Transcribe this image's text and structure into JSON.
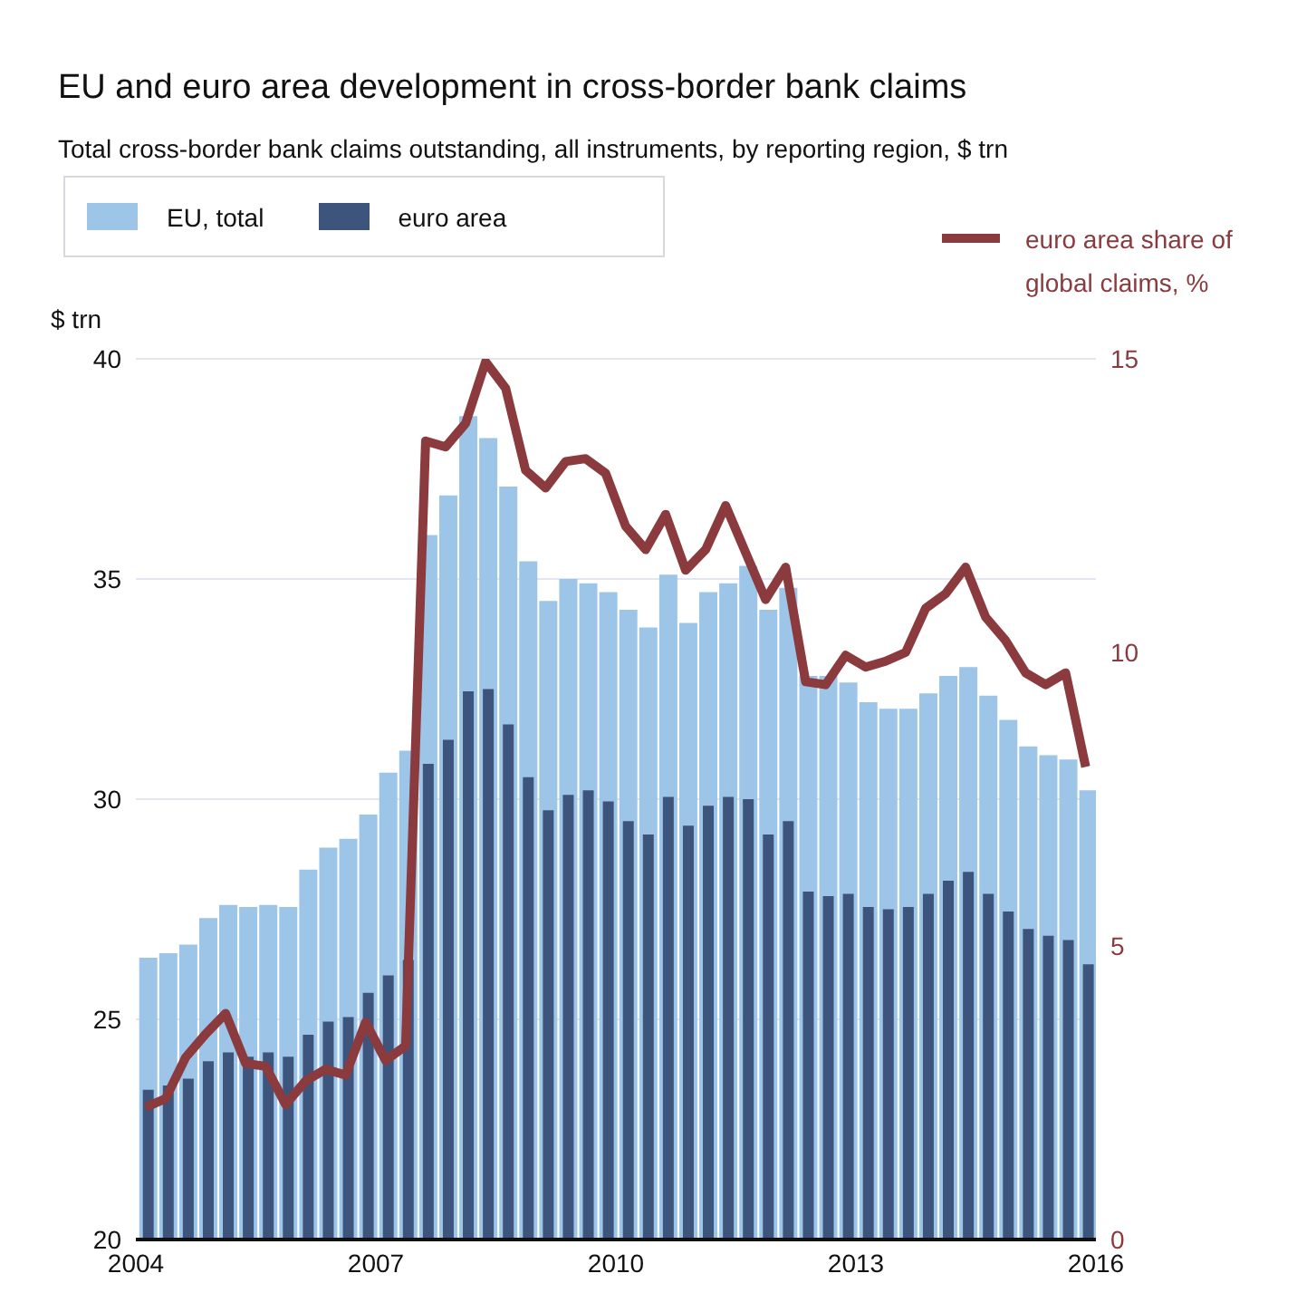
{
  "chart_data": {
    "type": "bar",
    "title": "EU and euro area development in cross-border bank claims",
    "subtitle": "Total cross-border bank claims outstanding, all instruments, by reporting region, $ trn",
    "ylabel": "$ trn",
    "x": [
      "2004-02-15",
      "2004-05-15",
      "2004-08-15",
      "2004-11-15",
      "2005-02-15",
      "2005-05-15",
      "2005-08-15",
      "2005-11-15",
      "2006-02-15",
      "2006-05-15",
      "2006-08-15",
      "2006-11-15",
      "2007-02-15",
      "2007-05-15",
      "2007-08-15",
      "2007-11-15",
      "2008-02-15",
      "2008-05-15",
      "2008-08-15",
      "2008-11-15",
      "2009-02-15",
      "2009-05-15",
      "2009-08-15",
      "2009-11-15",
      "2010-02-15",
      "2010-05-15",
      "2010-08-15",
      "2010-11-15",
      "2011-02-15",
      "2011-05-15",
      "2011-08-15",
      "2011-11-15",
      "2012-02-15",
      "2012-05-15",
      "2012-08-15",
      "2012-11-15",
      "2013-02-15",
      "2013-05-15",
      "2013-08-15",
      "2013-11-15",
      "2014-02-15",
      "2014-05-15",
      "2014-08-15",
      "2014-11-15",
      "2015-02-15",
      "2015-05-15",
      "2015-08-15",
      "2015-11-15"
    ],
    "series": [
      {
        "name": "EU, total",
        "color": "#9cc5e8",
        "values": [
          26.4,
          26.5,
          26.7,
          27.3,
          27.6,
          27.55,
          27.6,
          27.55,
          28.4,
          28.9,
          29.1,
          29.65,
          30.6,
          31.1,
          36.0,
          36.9,
          38.7,
          38.2,
          37.1,
          35.4,
          34.5,
          35.0,
          34.9,
          34.7,
          34.3,
          33.9,
          35.1,
          34.0,
          34.7,
          34.9,
          35.3,
          34.3,
          34.8,
          32.8,
          32.8,
          32.65,
          32.2,
          32.05,
          32.05,
          32.4,
          32.8,
          33.0,
          32.35,
          31.8,
          31.2,
          31.0,
          30.9,
          30.2
        ]
      },
      {
        "name": "euro area",
        "color": "#3d547c",
        "values": [
          23.4,
          23.5,
          23.65,
          24.05,
          24.25,
          24.15,
          24.25,
          24.15,
          24.65,
          24.95,
          25.05,
          25.6,
          26.0,
          26.35,
          30.8,
          31.35,
          32.45,
          32.5,
          31.7,
          30.5,
          29.75,
          30.1,
          30.2,
          29.95,
          29.5,
          29.2,
          30.05,
          29.4,
          29.85,
          30.05,
          30.0,
          29.2,
          29.5,
          27.9,
          27.8,
          27.85,
          27.55,
          27.5,
          27.55,
          27.85,
          28.15,
          28.35,
          27.85,
          27.45,
          27.05,
          26.9,
          26.8,
          26.25
        ]
      },
      {
        "name": "euro area share of global claims, %",
        "type": "line",
        "axis": "y2",
        "color": "#8b3a3e",
        "values": [
          2.25,
          2.4,
          3.1,
          3.5,
          3.85,
          3.0,
          2.95,
          2.3,
          2.7,
          2.9,
          2.8,
          3.7,
          3.05,
          3.3,
          13.6,
          13.5,
          13.9,
          14.95,
          14.5,
          13.1,
          12.8,
          13.25,
          13.3,
          13.05,
          12.15,
          11.75,
          12.35,
          11.4,
          11.75,
          12.5,
          11.7,
          10.9,
          11.45,
          9.5,
          9.45,
          9.95,
          9.75,
          9.85,
          10.0,
          10.75,
          11.0,
          11.45,
          10.6,
          10.2,
          9.65,
          9.45,
          9.65,
          8.05
        ]
      }
    ],
    "xlim": [
      "2004",
      "2016"
    ],
    "xticks": [
      "2004",
      "2007",
      "2010",
      "2013",
      "2016"
    ],
    "ylim": [
      20,
      40
    ],
    "yticks": [
      20,
      25,
      30,
      35,
      40
    ],
    "y2lim": [
      0,
      15
    ],
    "y2ticks": [
      0,
      5,
      10,
      15
    ],
    "grid": "y",
    "legend": "top",
    "marker": "none"
  }
}
